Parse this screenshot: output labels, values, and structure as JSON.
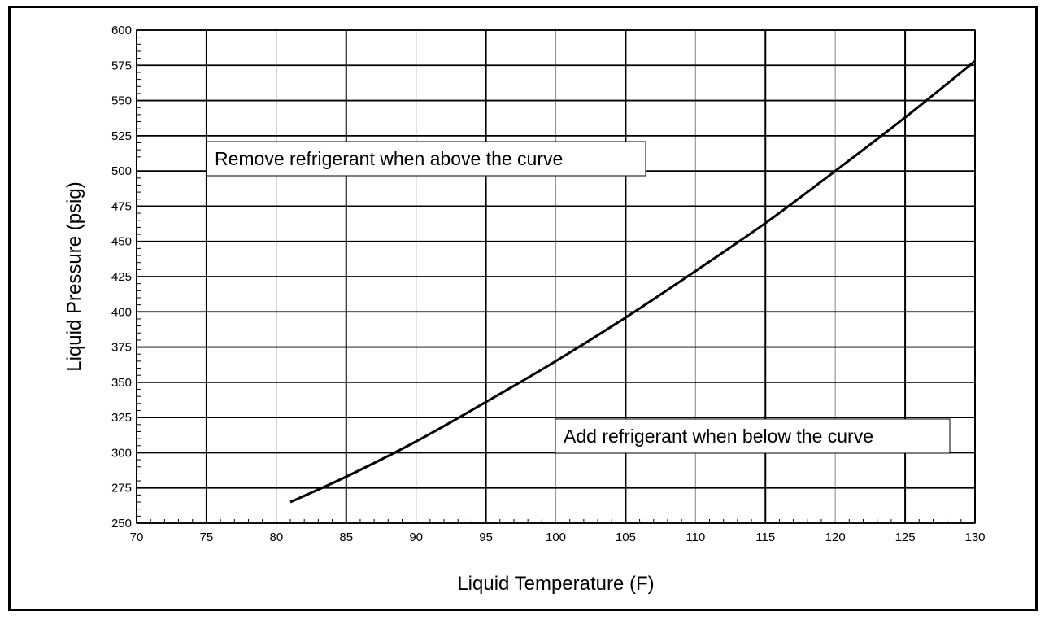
{
  "chart_data": {
    "type": "line",
    "xlabel": "Liquid Temperature (F)",
    "ylabel": "Liquid Pressure (psig)",
    "xlim": [
      70,
      130
    ],
    "ylim": [
      250,
      600
    ],
    "x_ticks": [
      70,
      75,
      80,
      85,
      90,
      95,
      100,
      105,
      110,
      115,
      120,
      125,
      130
    ],
    "y_ticks": [
      250,
      275,
      300,
      325,
      350,
      375,
      400,
      425,
      450,
      475,
      500,
      525,
      550,
      575,
      600
    ],
    "grid": true,
    "series": [
      {
        "x": [
          81,
          85,
          90,
          95,
          100,
          105,
          110,
          115,
          120,
          125,
          130
        ],
        "y": [
          265,
          283,
          308,
          336,
          365,
          396,
          429,
          463,
          500,
          538,
          578
        ]
      }
    ],
    "annotations": [
      {
        "text": "Remove refrigerant when above the curve"
      },
      {
        "text": "Add refrigerant when below the curve"
      }
    ]
  }
}
